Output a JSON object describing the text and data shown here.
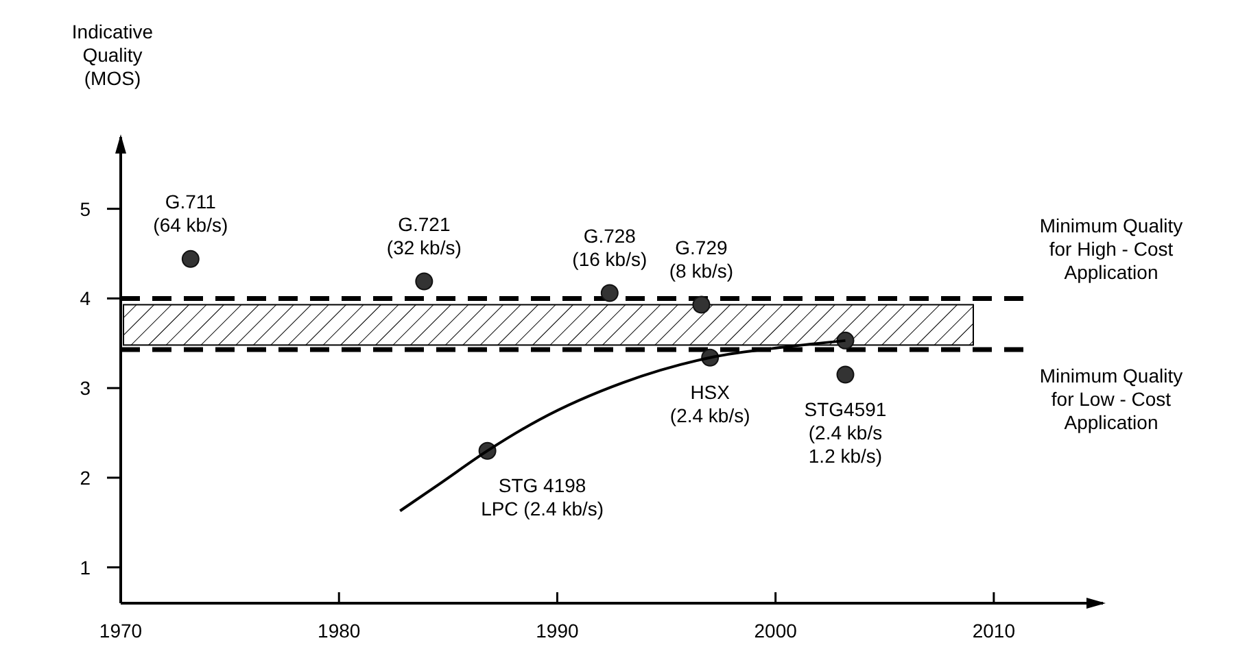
{
  "chart_data": {
    "type": "scatter",
    "ylabel": "Indicative Quality (MOS)",
    "xlim": [
      1970,
      2015
    ],
    "xticks": [
      1970,
      1980,
      1990,
      2000,
      2010
    ],
    "ylim": [
      0.6,
      5.8
    ],
    "yticks": [
      1,
      2,
      3,
      4,
      5
    ],
    "grid": false,
    "series": [
      {
        "marker": "circle",
        "color": "#333333",
        "x": [
          1973.2,
          1983.9,
          1992.4,
          1996.6,
          1997.0,
          2003.2,
          2003.2,
          1986.8
        ],
        "values": [
          4.44,
          4.19,
          4.06,
          3.93,
          3.34,
          3.53,
          3.15,
          2.3
        ]
      },
      {
        "type": "line",
        "color": "#000000",
        "x": [
          1982.8,
          1984.6,
          1986.8,
          1989.2,
          1993.0,
          1997.0,
          2000.5,
          2003.2
        ],
        "values": [
          1.63,
          1.93,
          2.3,
          2.65,
          3.06,
          3.34,
          3.46,
          3.53
        ]
      }
    ],
    "ref_lines": [
      {
        "axis": "y",
        "value": 4.0,
        "label": "Minimum Quality for High - Cost Application",
        "line_style": "dashed",
        "color": "#000000"
      },
      {
        "axis": "y",
        "value": 3.43,
        "label": "Minimum Quality for Low - Cost Application",
        "line_style": "dashed",
        "color": "#000000"
      }
    ],
    "bands": [
      {
        "axis": "y",
        "from": 3.48,
        "to": 3.93,
        "color": "#000000"
      }
    ],
    "annotations": [
      {
        "text": "G.711\n(64 kb/s)",
        "x": 1973.2,
        "y": 4.44
      },
      {
        "text": "G.721\n(32 kb/s)",
        "x": 1983.9,
        "y": 4.19
      },
      {
        "text": "G.728\n(16 kb/s)",
        "x": 1992.4,
        "y": 4.06
      },
      {
        "text": "G.729\n(8 kb/s)",
        "x": 1996.6,
        "y": 3.93
      },
      {
        "text": "HSX\n(2.4 kb/s)",
        "x": 1997.0,
        "y": 3.34
      },
      {
        "text": "STG4591\n(2.4 kb/s\n1.2 kb/s)",
        "x": 2003.2,
        "y": 3.15
      },
      {
        "text": "STG 4198\nLPC (2.4 kb/s)",
        "x": 1986.8,
        "y": 2.3
      }
    ]
  }
}
